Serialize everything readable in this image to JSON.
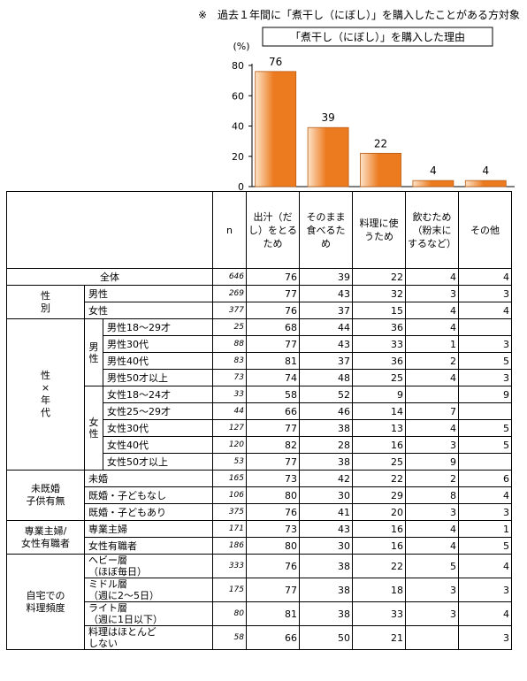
{
  "note": "※　過去１年間に「煮干し（にぼし）」を購入したことがある方対象",
  "chart_data": {
    "type": "bar",
    "title": "「煮干し（にぼし）」を購入した理由",
    "ylabel": "(%)",
    "ylim": [
      0,
      80
    ],
    "yticks": [
      0,
      20,
      40,
      60,
      80
    ],
    "categories": [
      "出汁（だし）をとるため",
      "そのまま食べるため",
      "料理に使うため",
      "飲むため（粉末にするなど）",
      "その他"
    ],
    "values": [
      76,
      39,
      22,
      4,
      4
    ],
    "colors": {
      "bar_light": "#fde3c8",
      "bar_dark": "#ec7a1f",
      "bar_edge": "#b85a10"
    }
  },
  "table": {
    "header": {
      "n": "n",
      "cols": [
        "出汁（だ|し）をとる|ため",
        "そのまま|食べるた|め",
        "料理に使|うため",
        "飲むため|（粉末に|するなど）",
        "その他"
      ]
    },
    "rows": [
      {
        "group": "全体",
        "sub": "",
        "label": "",
        "n": "646",
        "v": [
          "76",
          "39",
          "22",
          "4",
          "4"
        ]
      },
      {
        "group": "性別",
        "sub": "",
        "label": "男性",
        "n": "269",
        "v": [
          "77",
          "43",
          "32",
          "3",
          "3"
        ]
      },
      {
        "group": "",
        "sub": "",
        "label": "女性",
        "n": "377",
        "v": [
          "76",
          "37",
          "15",
          "4",
          "4"
        ]
      },
      {
        "group": "性×年代",
        "sub": "男性",
        "label": "男性18～29才",
        "n": "25",
        "v": [
          "68",
          "44",
          "36",
          "4",
          ""
        ]
      },
      {
        "group": "",
        "sub": "",
        "label": "男性30代",
        "n": "88",
        "v": [
          "77",
          "43",
          "33",
          "1",
          "3"
        ]
      },
      {
        "group": "",
        "sub": "",
        "label": "男性40代",
        "n": "83",
        "v": [
          "81",
          "37",
          "36",
          "2",
          "5"
        ]
      },
      {
        "group": "",
        "sub": "",
        "label": "男性50才以上",
        "n": "73",
        "v": [
          "74",
          "48",
          "25",
          "4",
          "3"
        ]
      },
      {
        "group": "",
        "sub": "女性",
        "label": "女性18～24才",
        "n": "33",
        "v": [
          "58",
          "52",
          "9",
          "",
          "9"
        ]
      },
      {
        "group": "",
        "sub": "",
        "label": "女性25～29才",
        "n": "44",
        "v": [
          "66",
          "46",
          "14",
          "7",
          ""
        ]
      },
      {
        "group": "",
        "sub": "",
        "label": "女性30代",
        "n": "127",
        "v": [
          "77",
          "38",
          "13",
          "4",
          "5"
        ]
      },
      {
        "group": "",
        "sub": "",
        "label": "女性40代",
        "n": "120",
        "v": [
          "82",
          "28",
          "16",
          "3",
          "5"
        ]
      },
      {
        "group": "",
        "sub": "",
        "label": "女性50才以上",
        "n": "53",
        "v": [
          "77",
          "38",
          "25",
          "9",
          ""
        ]
      },
      {
        "group": "未既婚子供有無",
        "sub": "",
        "label": "未婚",
        "n": "165",
        "v": [
          "73",
          "42",
          "22",
          "2",
          "6"
        ]
      },
      {
        "group": "",
        "sub": "",
        "label": "既婚・子どもなし",
        "n": "106",
        "v": [
          "80",
          "30",
          "29",
          "8",
          "4"
        ]
      },
      {
        "group": "",
        "sub": "",
        "label": "既婚・子どもあり",
        "n": "375",
        "v": [
          "76",
          "41",
          "20",
          "3",
          "3"
        ]
      },
      {
        "group": "専業主婦/女性有職者",
        "sub": "",
        "label": "専業主婦",
        "n": "171",
        "v": [
          "73",
          "43",
          "16",
          "4",
          "1"
        ]
      },
      {
        "group": "",
        "sub": "",
        "label": "女性有職者",
        "n": "186",
        "v": [
          "80",
          "30",
          "16",
          "4",
          "5"
        ]
      },
      {
        "group": "自宅での料理頻度",
        "sub": "",
        "label": "ヘビー層|（ほぼ毎日）",
        "n": "333",
        "v": [
          "76",
          "38",
          "22",
          "5",
          "4"
        ]
      },
      {
        "group": "",
        "sub": "",
        "label": "ミドル層|（週に2～5日）",
        "n": "175",
        "v": [
          "77",
          "38",
          "18",
          "3",
          "3"
        ]
      },
      {
        "group": "",
        "sub": "",
        "label": "ライト層|（週に1日以下）",
        "n": "80",
        "v": [
          "81",
          "38",
          "33",
          "3",
          "4"
        ]
      },
      {
        "group": "",
        "sub": "",
        "label": "料理はほとんど|しない",
        "n": "58",
        "v": [
          "66",
          "50",
          "21",
          "",
          "3"
        ]
      }
    ]
  }
}
